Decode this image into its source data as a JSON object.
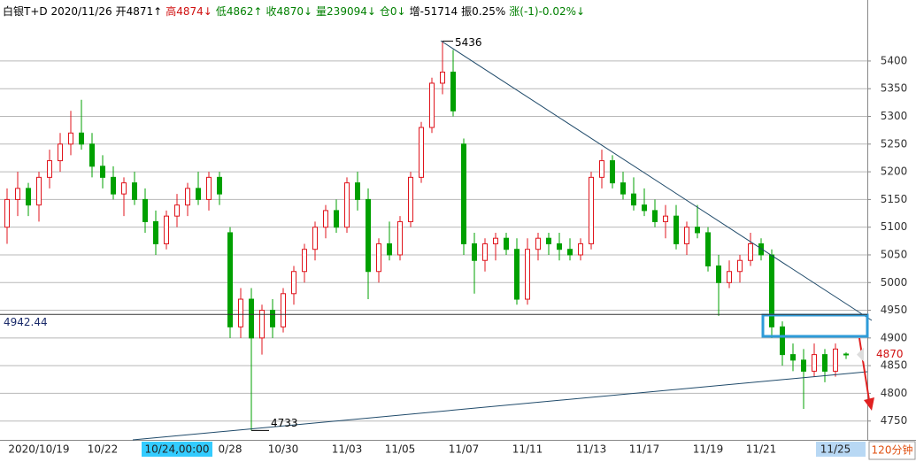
{
  "chart_data": {
    "type": "candlestick",
    "header": [
      {
        "text": "白银T+D 2020/11/26",
        "color": "#000000"
      },
      {
        "text": "开4871↑",
        "color": "#000000"
      },
      {
        "text": "高4874↓",
        "color": "#d01010"
      },
      {
        "text": "低4862↑",
        "color": "#008000"
      },
      {
        "text": "收4870↓",
        "color": "#008000"
      },
      {
        "text": "量239094↓",
        "color": "#008000"
      },
      {
        "text": "仓0↓",
        "color": "#008000"
      },
      {
        "text": "增-51714",
        "color": "#000000"
      },
      {
        "text": "振0.25%",
        "color": "#000000"
      },
      {
        "text": "涨(-1)-0.02%↓",
        "color": "#008000"
      }
    ],
    "period": "120分钟",
    "categories": [
      null,
      null,
      null,
      "2020/10/19",
      null,
      null,
      null,
      null,
      null,
      "10/22",
      null,
      null,
      null,
      null,
      null,
      null,
      "10/24,00:00",
      null,
      null,
      null,
      null,
      "0/28",
      null,
      null,
      null,
      null,
      "10/30",
      null,
      null,
      null,
      null,
      null,
      "11/03",
      null,
      null,
      null,
      null,
      "11/05",
      null,
      null,
      null,
      null,
      null,
      "11/07",
      null,
      null,
      null,
      null,
      null,
      "11/11",
      null,
      null,
      null,
      null,
      null,
      "11/13",
      null,
      null,
      null,
      null,
      "11/17",
      null,
      null,
      null,
      null,
      null,
      "11/19",
      null,
      null,
      null,
      null,
      "11/21",
      null,
      null,
      null,
      null,
      null,
      null,
      "11/25",
      null
    ],
    "open": [
      5100,
      5150,
      5170,
      5140,
      5190,
      5220,
      5250,
      5270,
      5250,
      5210,
      5190,
      5160,
      5180,
      5150,
      5110,
      5070,
      5120,
      5140,
      5170,
      5150,
      5190,
      5090,
      4920,
      4970,
      4900,
      4950,
      4920,
      4980,
      5020,
      5060,
      5100,
      5130,
      5100,
      5180,
      5150,
      5020,
      5070,
      5050,
      5110,
      5190,
      5280,
      5360,
      5380,
      5250,
      5070,
      5040,
      5070,
      5080,
      5060,
      4970,
      5060,
      5080,
      5070,
      5060,
      5050,
      5070,
      5190,
      5220,
      5180,
      5160,
      5140,
      5130,
      5110,
      5120,
      5070,
      5100,
      5090,
      5030,
      5000,
      5020,
      5040,
      5070,
      5050,
      4920,
      4870,
      4860,
      4840,
      4870,
      4840,
      4871
    ],
    "high": [
      5170,
      5200,
      5180,
      5200,
      5240,
      5270,
      5310,
      5330,
      5270,
      5230,
      5210,
      5190,
      5200,
      5170,
      5130,
      5130,
      5160,
      5180,
      5200,
      5200,
      5200,
      5100,
      4990,
      4990,
      4960,
      4970,
      4990,
      5030,
      5070,
      5110,
      5140,
      5150,
      5190,
      5200,
      5170,
      5080,
      5110,
      5120,
      5200,
      5290,
      5370,
      5436,
      5420,
      5260,
      5090,
      5080,
      5090,
      5090,
      5080,
      5080,
      5090,
      5090,
      5090,
      5080,
      5080,
      5200,
      5240,
      5230,
      5200,
      5190,
      5170,
      5150,
      5140,
      5140,
      5110,
      5140,
      5100,
      5050,
      5040,
      5050,
      5090,
      5080,
      5060,
      4930,
      4890,
      4880,
      4890,
      4880,
      4890,
      4874
    ],
    "low": [
      5070,
      5120,
      5120,
      5110,
      5170,
      5200,
      5230,
      5240,
      5190,
      5170,
      5150,
      5120,
      5140,
      5090,
      5050,
      5060,
      5100,
      5120,
      5140,
      5130,
      5140,
      4900,
      4900,
      4733,
      4870,
      4900,
      4910,
      4960,
      5000,
      5040,
      5080,
      5090,
      5090,
      5130,
      4970,
      5000,
      5040,
      5040,
      5100,
      5180,
      5270,
      5340,
      5300,
      5050,
      4980,
      5020,
      5040,
      5050,
      4960,
      4960,
      5040,
      5050,
      5040,
      5040,
      5040,
      5060,
      5170,
      5170,
      5150,
      5130,
      5120,
      5100,
      5080,
      5060,
      5050,
      5080,
      5020,
      4940,
      4990,
      5000,
      5030,
      5040,
      4900,
      4850,
      4840,
      4772,
      4830,
      4820,
      4830,
      4862
    ],
    "close": [
      5150,
      5170,
      5140,
      5190,
      5220,
      5250,
      5270,
      5250,
      5210,
      5190,
      5160,
      5180,
      5150,
      5110,
      5070,
      5120,
      5140,
      5170,
      5150,
      5190,
      5160,
      4920,
      4970,
      4900,
      4950,
      4920,
      4980,
      5020,
      5060,
      5100,
      5130,
      5100,
      5180,
      5150,
      5020,
      5070,
      5050,
      5110,
      5190,
      5280,
      5360,
      5380,
      5310,
      5070,
      5040,
      5070,
      5080,
      5060,
      4970,
      5060,
      5080,
      5070,
      5060,
      5050,
      5070,
      5190,
      5220,
      5180,
      5160,
      5140,
      5130,
      5110,
      5120,
      5070,
      5100,
      5090,
      5030,
      5000,
      5020,
      5040,
      5070,
      5050,
      4920,
      4870,
      4860,
      4840,
      4870,
      4840,
      4880,
      4870
    ],
    "up_color": "#e0141c",
    "down_color": "#00a000",
    "ylim": [
      4716,
      5475
    ],
    "yticks": [
      4750,
      4800,
      4850,
      4900,
      4950,
      5000,
      5050,
      5100,
      5150,
      5200,
      5250,
      5300,
      5350,
      5400
    ],
    "grid": true,
    "hline": 4942.44,
    "max_label": 5436,
    "min_label": 4733,
    "last_price": 4870
  }
}
